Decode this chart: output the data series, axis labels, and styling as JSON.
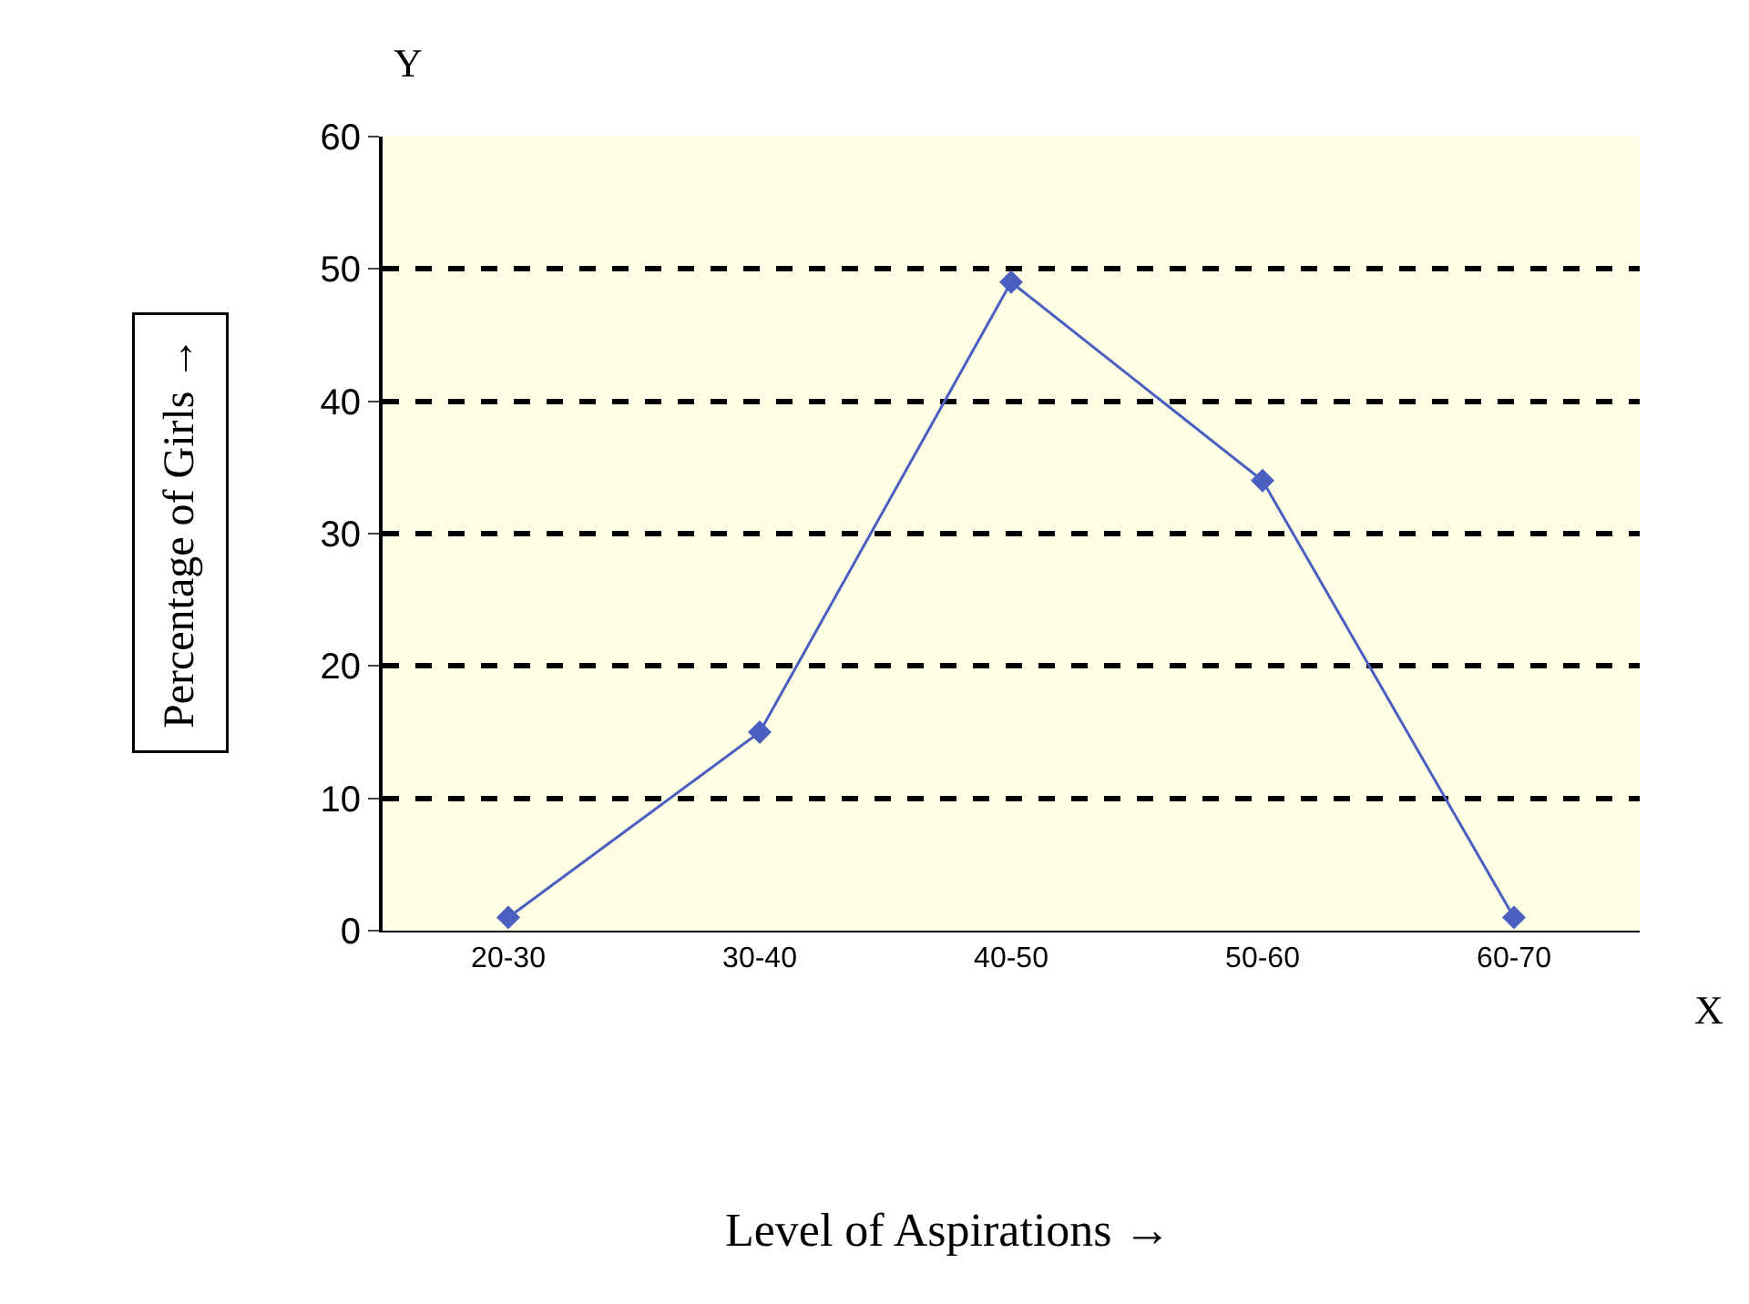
{
  "chart_data": {
    "type": "line",
    "xlabel": "Level of Aspirations →",
    "ylabel": "Percentage of Girls →",
    "categories": [
      "20-30",
      "30-40",
      "40-50",
      "50-60",
      "60-70"
    ],
    "series": [
      {
        "color": "#4a5fbf",
        "values": [
          1,
          15,
          49,
          34,
          1
        ]
      }
    ],
    "ylim": [
      0,
      60
    ],
    "yticks": [
      0,
      10,
      20,
      30,
      40,
      50,
      60
    ],
    "grid": "y",
    "legend": false,
    "marker": "diamond",
    "line_style": "solid",
    "annotations": [
      "Y",
      "X"
    ]
  }
}
